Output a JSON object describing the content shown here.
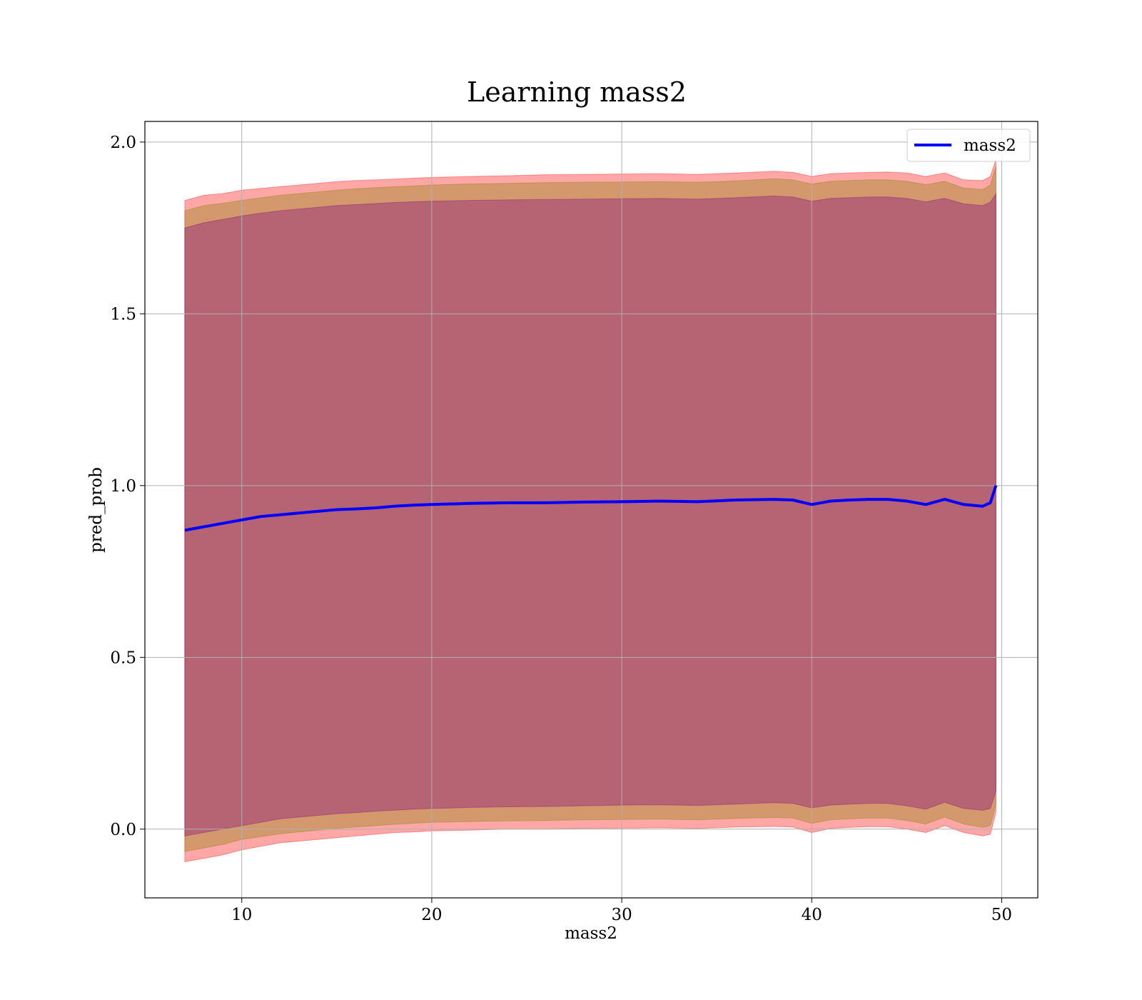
{
  "chart_data": {
    "type": "line",
    "title": "Learning mass2",
    "xlabel": "mass2",
    "ylabel": "pred_prob",
    "xlim": [
      4.9,
      51.9
    ],
    "ylim": [
      -0.2,
      2.06
    ],
    "xticks": [
      10,
      20,
      30,
      40,
      50
    ],
    "xtick_labels": [
      "10",
      "20",
      "30",
      "40",
      "50"
    ],
    "yticks": [
      0.0,
      0.5,
      1.0,
      1.5,
      2.0
    ],
    "ytick_labels": [
      "0.0",
      "0.5",
      "1.0",
      "1.5",
      "2.0"
    ],
    "grid": true,
    "legend_position": "top-right",
    "series": [
      {
        "name": "mass2",
        "color": "#0000ff",
        "x": [
          7.0,
          8,
          9,
          10,
          11,
          12,
          13,
          14,
          15,
          16,
          17,
          18,
          19,
          20,
          22,
          24,
          26,
          28,
          30,
          32,
          34,
          36,
          38,
          39,
          40,
          41,
          42,
          43,
          44,
          45,
          46,
          47,
          48,
          49,
          49.4,
          49.7
        ],
        "values": [
          0.87,
          0.88,
          0.89,
          0.9,
          0.91,
          0.915,
          0.92,
          0.925,
          0.93,
          0.932,
          0.935,
          0.94,
          0.943,
          0.945,
          0.948,
          0.95,
          0.95,
          0.952,
          0.953,
          0.955,
          0.953,
          0.958,
          0.96,
          0.958,
          0.945,
          0.955,
          0.958,
          0.96,
          0.96,
          0.955,
          0.945,
          0.96,
          0.945,
          0.94,
          0.95,
          1.0
        ]
      }
    ],
    "bands": [
      {
        "role": "outer",
        "color": "#ff0000",
        "x": [
          7.0,
          8,
          9,
          10,
          11,
          12,
          13,
          14,
          15,
          16,
          17,
          18,
          19,
          20,
          22,
          24,
          26,
          28,
          30,
          32,
          34,
          36,
          38,
          39,
          40,
          41,
          42,
          43,
          44,
          45,
          46,
          47,
          48,
          49,
          49.4,
          49.7
        ],
        "upper": [
          1.83,
          1.845,
          1.85,
          1.86,
          1.865,
          1.87,
          1.875,
          1.88,
          1.885,
          1.888,
          1.89,
          1.892,
          1.895,
          1.897,
          1.9,
          1.902,
          1.905,
          1.906,
          1.907,
          1.908,
          1.906,
          1.91,
          1.915,
          1.912,
          1.9,
          1.908,
          1.91,
          1.912,
          1.913,
          1.91,
          1.9,
          1.91,
          1.89,
          1.888,
          1.9,
          1.95
        ],
        "lower": [
          -0.095,
          -0.085,
          -0.075,
          -0.06,
          -0.05,
          -0.04,
          -0.035,
          -0.03,
          -0.025,
          -0.02,
          -0.015,
          -0.01,
          -0.008,
          -0.005,
          -0.003,
          0.0,
          0.0,
          0.002,
          0.003,
          0.004,
          0.002,
          0.006,
          0.008,
          0.006,
          -0.01,
          0.002,
          0.005,
          0.007,
          0.007,
          0.0,
          -0.01,
          0.01,
          -0.01,
          -0.02,
          -0.015,
          0.05
        ]
      },
      {
        "role": "middle",
        "color": "#808000",
        "x": [
          7.0,
          8,
          9,
          10,
          11,
          12,
          13,
          14,
          15,
          16,
          17,
          18,
          19,
          20,
          22,
          24,
          26,
          28,
          30,
          32,
          34,
          36,
          38,
          39,
          40,
          41,
          42,
          43,
          44,
          45,
          46,
          47,
          48,
          49,
          49.4,
          49.7
        ],
        "upper": [
          1.8,
          1.815,
          1.822,
          1.83,
          1.838,
          1.845,
          1.85,
          1.855,
          1.86,
          1.864,
          1.867,
          1.87,
          1.872,
          1.875,
          1.878,
          1.88,
          1.882,
          1.883,
          1.884,
          1.885,
          1.883,
          1.887,
          1.893,
          1.89,
          1.878,
          1.886,
          1.888,
          1.89,
          1.89,
          1.886,
          1.876,
          1.886,
          1.866,
          1.862,
          1.875,
          1.93
        ],
        "lower": [
          -0.065,
          -0.055,
          -0.045,
          -0.03,
          -0.022,
          -0.014,
          -0.008,
          -0.003,
          0.002,
          0.006,
          0.01,
          0.014,
          0.017,
          0.02,
          0.022,
          0.024,
          0.025,
          0.027,
          0.028,
          0.029,
          0.027,
          0.031,
          0.034,
          0.032,
          0.017,
          0.027,
          0.03,
          0.032,
          0.032,
          0.025,
          0.015,
          0.035,
          0.015,
          0.005,
          0.01,
          0.07
        ]
      },
      {
        "role": "inner",
        "color": "#800080",
        "x": [
          7.0,
          8,
          9,
          10,
          11,
          12,
          13,
          14,
          15,
          16,
          17,
          18,
          19,
          20,
          22,
          24,
          26,
          28,
          30,
          32,
          34,
          36,
          38,
          39,
          40,
          41,
          42,
          43,
          44,
          45,
          46,
          47,
          48,
          49,
          49.4,
          49.7
        ],
        "upper": [
          1.75,
          1.765,
          1.775,
          1.785,
          1.793,
          1.8,
          1.805,
          1.81,
          1.815,
          1.818,
          1.821,
          1.824,
          1.826,
          1.828,
          1.83,
          1.832,
          1.833,
          1.834,
          1.835,
          1.836,
          1.834,
          1.838,
          1.843,
          1.84,
          1.828,
          1.836,
          1.838,
          1.84,
          1.84,
          1.836,
          1.826,
          1.836,
          1.82,
          1.815,
          1.825,
          1.85
        ],
        "lower": [
          -0.02,
          -0.01,
          0.0,
          0.01,
          0.02,
          0.03,
          0.035,
          0.04,
          0.045,
          0.048,
          0.052,
          0.055,
          0.058,
          0.06,
          0.063,
          0.065,
          0.066,
          0.068,
          0.07,
          0.071,
          0.069,
          0.073,
          0.077,
          0.075,
          0.062,
          0.07,
          0.073,
          0.075,
          0.075,
          0.068,
          0.058,
          0.078,
          0.06,
          0.055,
          0.06,
          0.11
        ]
      }
    ]
  }
}
